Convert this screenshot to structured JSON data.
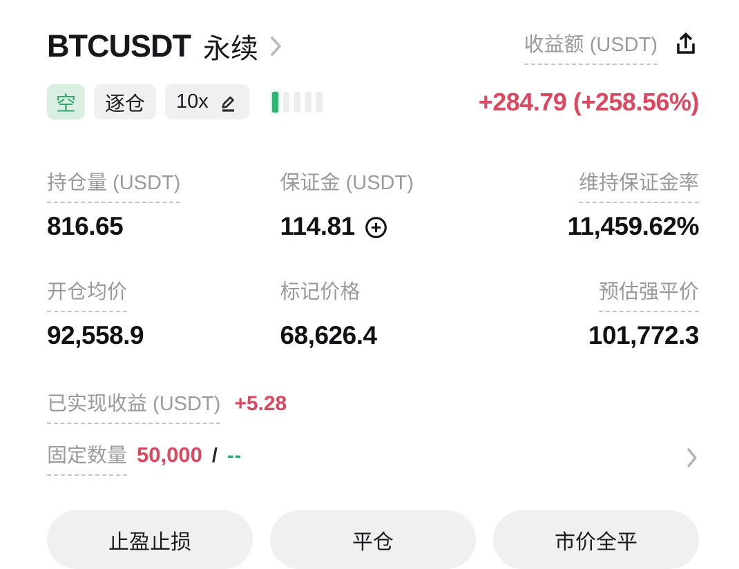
{
  "header": {
    "symbol": "BTCUSDT",
    "contract_type": "永续",
    "pnl_label": "收益额 (USDT)",
    "pnl_value": "+284.79 (+258.56%)"
  },
  "badges": {
    "side": "空",
    "margin_mode": "逐仓",
    "leverage": "10x"
  },
  "risk_meter": {
    "total_bars": 5,
    "active_bars": 1
  },
  "stats": [
    {
      "label": "持仓量 (USDT)",
      "value": "816.65"
    },
    {
      "label": "保证金 (USDT)",
      "value": "114.81"
    },
    {
      "label": "维持保证金率",
      "value": "11,459.62%"
    },
    {
      "label": "开仓均价",
      "value": "92,558.9"
    },
    {
      "label": "标记价格",
      "value": "68,626.4"
    },
    {
      "label": "预估强平价",
      "value": "101,772.3"
    }
  ],
  "realized_pnl": {
    "label": "已实现收益 (USDT)",
    "value": "+5.28"
  },
  "tp_sl": {
    "label": "固定数量",
    "take_profit": "50,000",
    "separator": "/",
    "stop_loss": "--"
  },
  "buttons": [
    {
      "label": "止盈止损"
    },
    {
      "label": "平仓"
    },
    {
      "label": "市价全平"
    }
  ],
  "colors": {
    "profit_red": "#dd4861",
    "loss_green": "#2eae68",
    "side_badge_bg": "#d9efe2",
    "side_badge_text": "#36a572",
    "badge_bg": "#f0f0f1",
    "label_gray": "#9a9a9a",
    "risk_bar_active": "#31b373",
    "risk_bar_inactive": "#ececee"
  }
}
